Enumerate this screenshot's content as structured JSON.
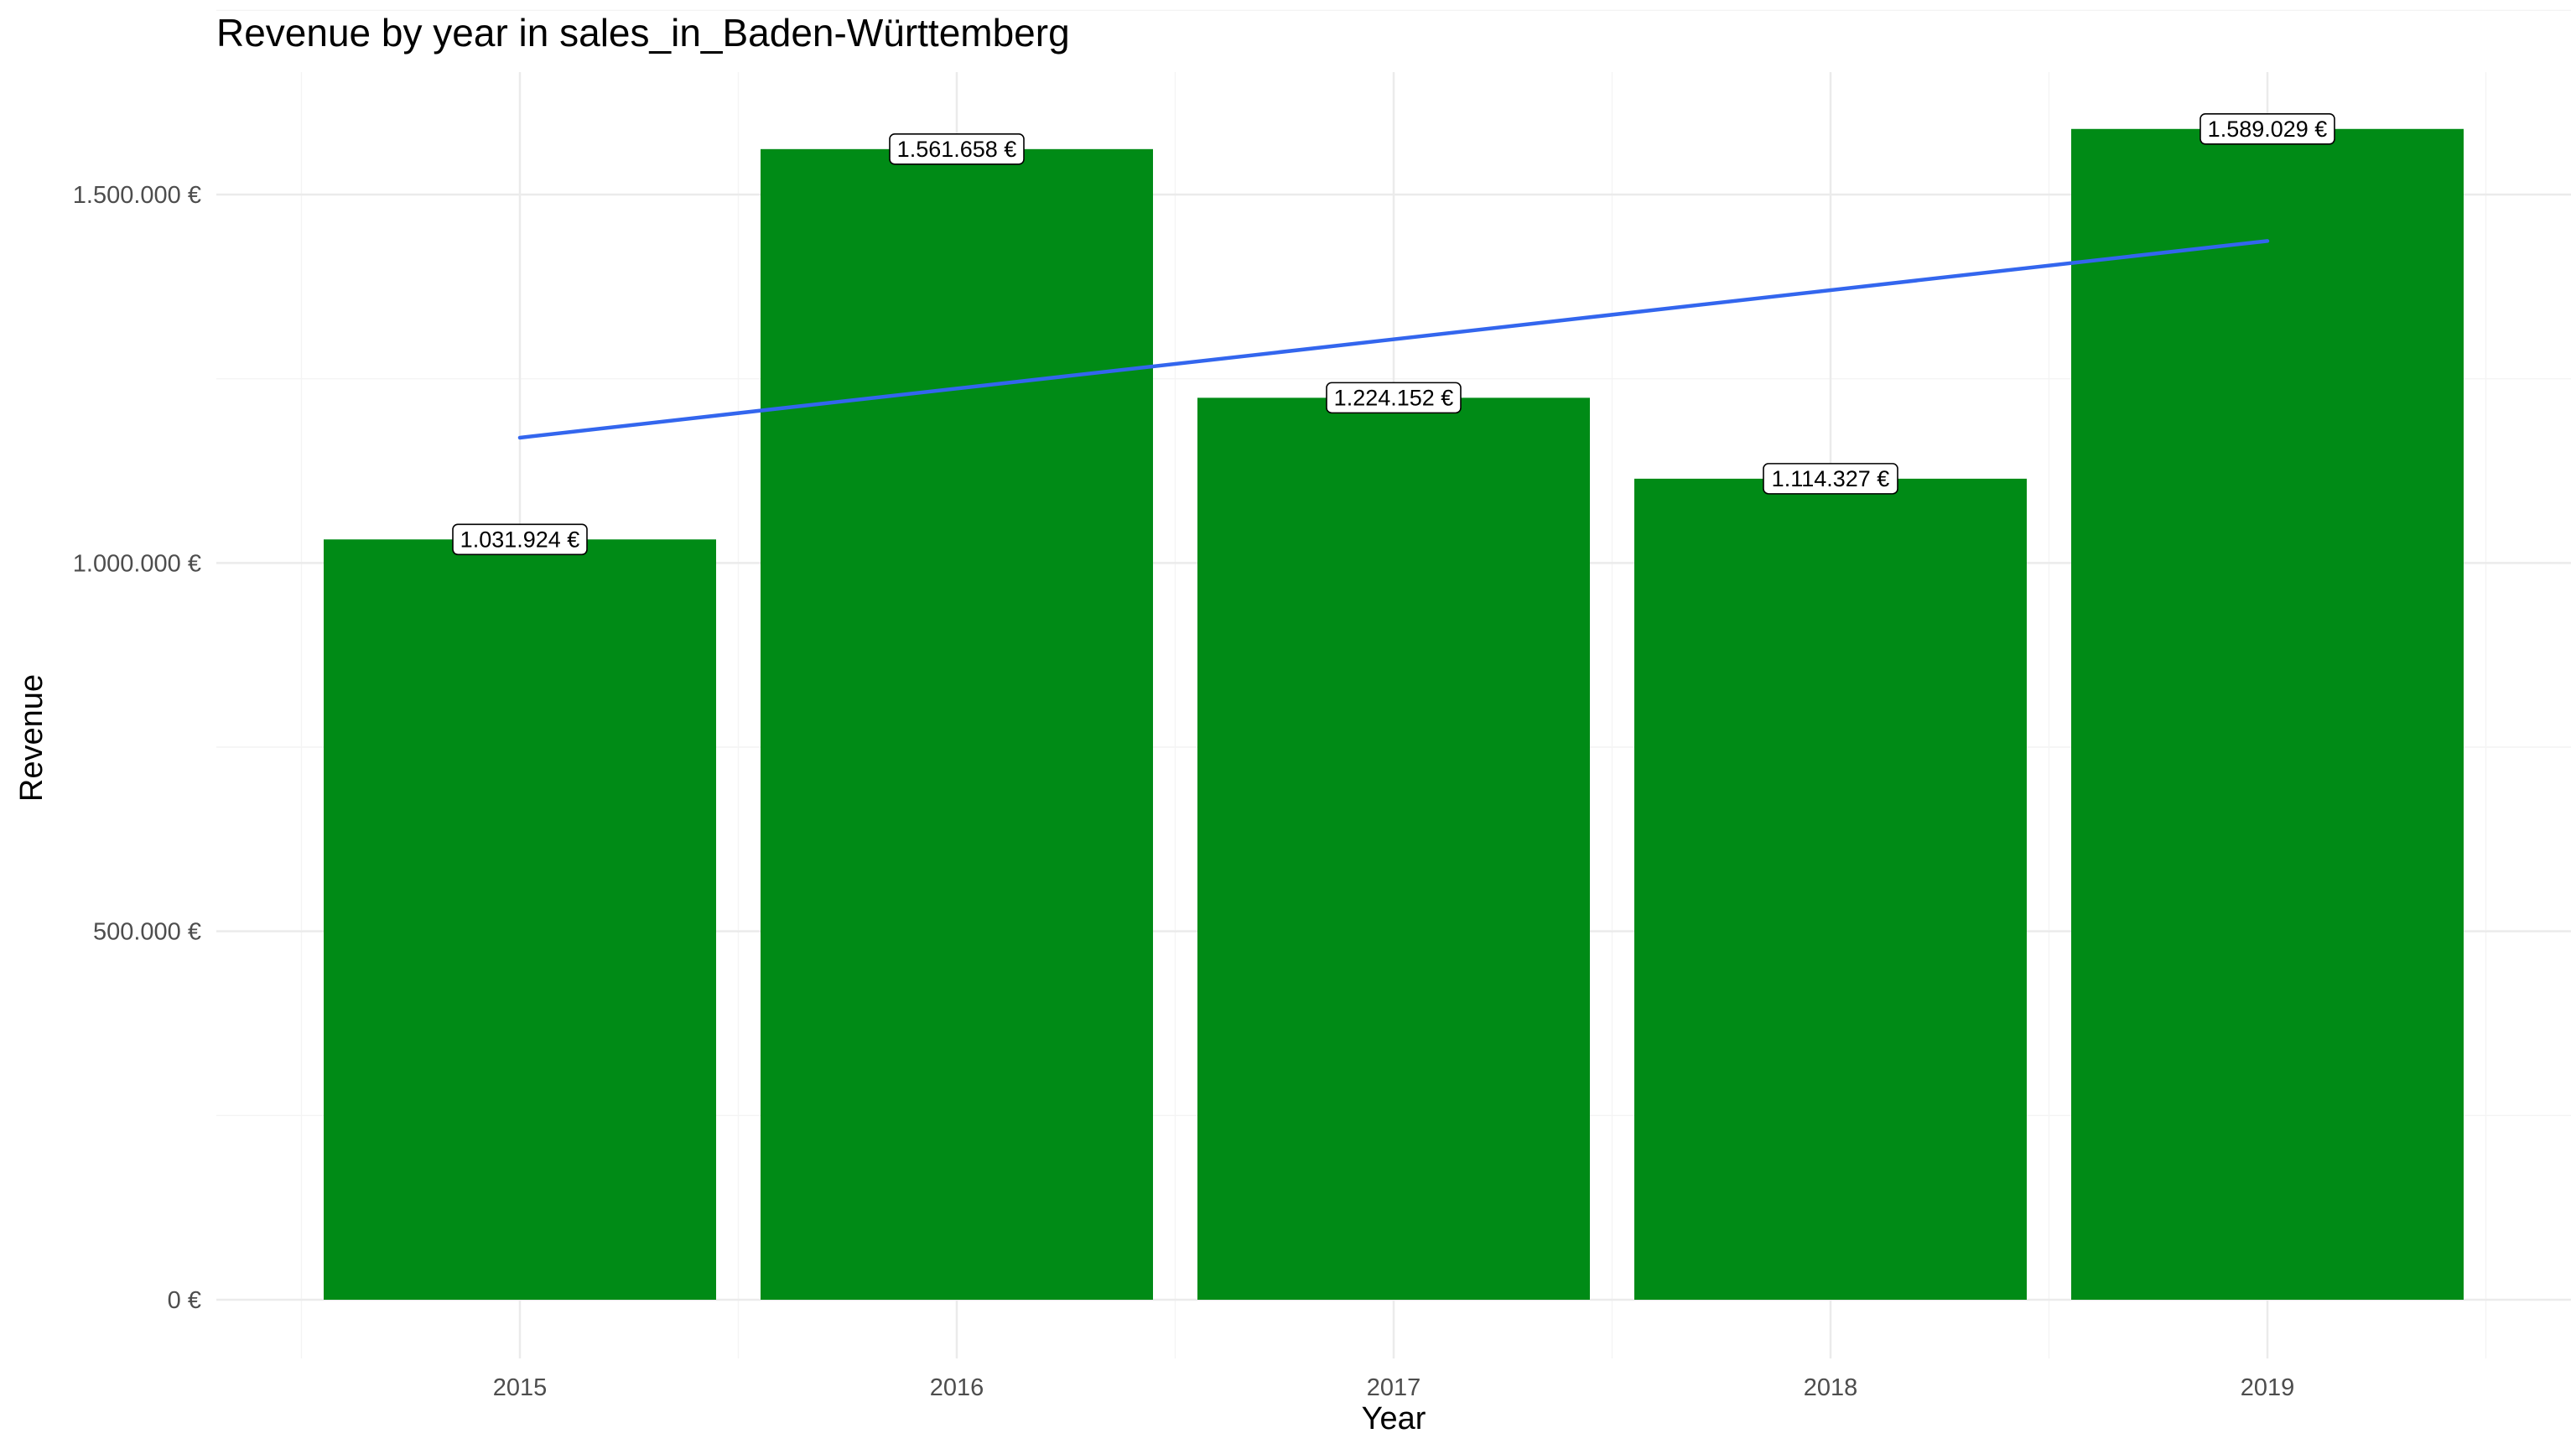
{
  "chart_data": {
    "type": "bar",
    "title": "Revenue by year in sales_in_Baden-Württemberg",
    "xlabel": "Year",
    "ylabel": "Revenue",
    "categories": [
      "2015",
      "2016",
      "2017",
      "2018",
      "2019"
    ],
    "values": [
      1031924,
      1561658,
      1224152,
      1114327,
      1589029
    ],
    "data_labels": [
      "1.031.924 €",
      "1.561.658 €",
      "1.224.152 €",
      "1.114.327 €",
      "1.589.029 €"
    ],
    "yticks": [
      0,
      500000,
      1000000,
      1500000
    ],
    "ytick_labels": [
      "0 €",
      "500.000 €",
      "1.000.000 €",
      "1.500.000 €"
    ],
    "ylim": [
      -70000,
      1670000
    ],
    "grid": true,
    "bar_color": "#008B16",
    "trend_line": {
      "type": "linear",
      "color": "#3366EE",
      "start": [
        2015,
        1170000
      ],
      "end": [
        2019,
        1437000
      ]
    }
  }
}
